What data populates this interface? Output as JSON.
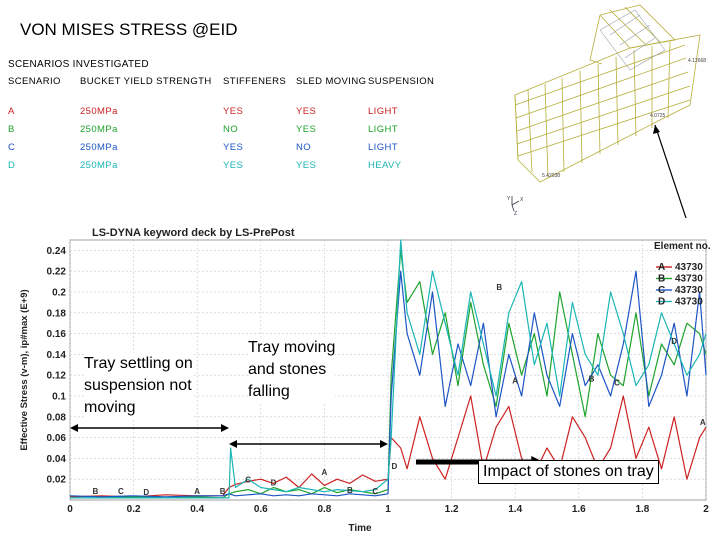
{
  "slide": {
    "title": "VON MISES STRESS @EID"
  },
  "scenarios": {
    "title": "SCENARIOS INVESTIGATED",
    "headers": [
      "SCENARIO",
      "BUCKET YIELD STRENGTH",
      "STIFFENERS",
      "SLED MOVING",
      "SUSPENSION"
    ],
    "rows": [
      [
        "A",
        "250MPa",
        "YES",
        "YES",
        "LIGHT"
      ],
      [
        "B",
        "250MPa",
        "NO",
        "YES",
        "LIGHT"
      ],
      [
        "C",
        "250MPa",
        "YES",
        "NO",
        "LIGHT"
      ],
      [
        "D",
        "250MPa",
        "YES",
        "YES",
        "HEAVY"
      ]
    ],
    "row_colors": [
      "#cc2222",
      "#1fa32d",
      "#1d55c4",
      "#1cb5b5"
    ]
  },
  "model_view": {
    "labels": [
      "4.12668",
      "4.0725",
      "5.42038"
    ],
    "triad": [
      "Y",
      "X",
      "Z"
    ]
  },
  "chart_data": {
    "type": "line",
    "title": "LS-DYNA keyword deck by LS-PrePost",
    "xlabel": "Time",
    "ylabel": "Effective Stress (v-m), ip#max (E+9)",
    "xlim": [
      0,
      2
    ],
    "ylim": [
      0,
      0.25
    ],
    "xticks": [
      0,
      0.2,
      0.4,
      0.6,
      0.8,
      1,
      1.2,
      1.4,
      1.6,
      1.8,
      2
    ],
    "yticks": [
      0.02,
      0.04,
      0.06,
      0.08,
      0.1,
      0.12,
      0.14,
      0.16,
      0.18,
      0.2,
      0.22,
      0.24
    ],
    "grid": true,
    "legend": {
      "title": "Element no.",
      "position": "top-right",
      "entries": [
        {
          "letter": "A",
          "label": "43730",
          "color": "#cc2222"
        },
        {
          "letter": "B",
          "label": "43730",
          "color": "#1fa32d"
        },
        {
          "letter": "C",
          "label": "43730",
          "color": "#1d55c4"
        },
        {
          "letter": "D",
          "label": "43730",
          "color": "#1cb5b5"
        }
      ]
    },
    "series": [
      {
        "letter": "A",
        "color": "#cc2222",
        "x": [
          0,
          0.1,
          0.2,
          0.3,
          0.4,
          0.48,
          0.5,
          0.52,
          0.56,
          0.6,
          0.64,
          0.68,
          0.72,
          0.76,
          0.8,
          0.84,
          0.88,
          0.92,
          0.96,
          1.0,
          1.01,
          1.04,
          1.06,
          1.1,
          1.14,
          1.18,
          1.22,
          1.26,
          1.3,
          1.34,
          1.38,
          1.42,
          1.46,
          1.5,
          1.54,
          1.58,
          1.62,
          1.66,
          1.7,
          1.74,
          1.78,
          1.82,
          1.86,
          1.9,
          1.94,
          1.98,
          2.0
        ],
        "y": [
          0.003,
          0.004,
          0.003,
          0.005,
          0.004,
          0.004,
          0.012,
          0.015,
          0.018,
          0.02,
          0.016,
          0.022,
          0.012,
          0.025,
          0.014,
          0.02,
          0.016,
          0.024,
          0.018,
          0.02,
          0.06,
          0.05,
          0.03,
          0.08,
          0.04,
          0.02,
          0.06,
          0.1,
          0.03,
          0.07,
          0.09,
          0.04,
          0.025,
          0.05,
          0.03,
          0.08,
          0.06,
          0.03,
          0.05,
          0.1,
          0.04,
          0.07,
          0.03,
          0.08,
          0.02,
          0.06,
          0.07
        ]
      },
      {
        "letter": "B",
        "color": "#1fa32d",
        "x": [
          0,
          0.1,
          0.2,
          0.3,
          0.4,
          0.48,
          0.5,
          0.52,
          0.56,
          0.6,
          0.64,
          0.68,
          0.72,
          0.76,
          0.8,
          0.84,
          0.88,
          0.92,
          0.96,
          1.0,
          1.01,
          1.04,
          1.06,
          1.1,
          1.14,
          1.18,
          1.22,
          1.26,
          1.3,
          1.34,
          1.38,
          1.42,
          1.46,
          1.5,
          1.54,
          1.58,
          1.62,
          1.66,
          1.7,
          1.74,
          1.78,
          1.82,
          1.86,
          1.9,
          1.94,
          1.98,
          2.0
        ],
        "y": [
          0.002,
          0.002,
          0.003,
          0.002,
          0.003,
          0.002,
          0.006,
          0.008,
          0.01,
          0.006,
          0.012,
          0.008,
          0.01,
          0.006,
          0.012,
          0.007,
          0.01,
          0.008,
          0.006,
          0.01,
          0.12,
          0.24,
          0.19,
          0.21,
          0.14,
          0.18,
          0.11,
          0.19,
          0.13,
          0.09,
          0.17,
          0.12,
          0.16,
          0.1,
          0.2,
          0.14,
          0.08,
          0.16,
          0.12,
          0.11,
          0.18,
          0.1,
          0.15,
          0.13,
          0.17,
          0.16,
          0.14
        ]
      },
      {
        "letter": "C",
        "color": "#1d55c4",
        "x": [
          0,
          0.1,
          0.2,
          0.3,
          0.4,
          0.48,
          0.5,
          0.52,
          0.56,
          0.6,
          0.64,
          0.68,
          0.72,
          0.76,
          0.8,
          0.84,
          0.88,
          0.92,
          0.96,
          1.0,
          1.01,
          1.04,
          1.06,
          1.1,
          1.14,
          1.18,
          1.22,
          1.26,
          1.3,
          1.34,
          1.38,
          1.42,
          1.46,
          1.5,
          1.54,
          1.58,
          1.62,
          1.66,
          1.7,
          1.74,
          1.78,
          1.82,
          1.86,
          1.9,
          1.94,
          1.98,
          2.0
        ],
        "y": [
          0.004,
          0.003,
          0.004,
          0.003,
          0.004,
          0.004,
          0.006,
          0.004,
          0.005,
          0.006,
          0.004,
          0.005,
          0.004,
          0.006,
          0.005,
          0.004,
          0.006,
          0.005,
          0.004,
          0.006,
          0.1,
          0.22,
          0.16,
          0.12,
          0.2,
          0.09,
          0.15,
          0.11,
          0.17,
          0.08,
          0.14,
          0.1,
          0.18,
          0.12,
          0.09,
          0.16,
          0.11,
          0.13,
          0.1,
          0.15,
          0.22,
          0.09,
          0.12,
          0.17,
          0.1,
          0.2,
          0.12
        ]
      },
      {
        "letter": "D",
        "color": "#1cb5b5",
        "x": [
          0,
          0.1,
          0.2,
          0.3,
          0.4,
          0.48,
          0.5,
          0.505,
          0.52,
          0.56,
          0.6,
          0.64,
          0.68,
          0.72,
          0.76,
          0.8,
          0.84,
          0.88,
          0.92,
          0.96,
          1.0,
          1.01,
          1.04,
          1.06,
          1.1,
          1.14,
          1.18,
          1.22,
          1.26,
          1.3,
          1.34,
          1.38,
          1.42,
          1.46,
          1.5,
          1.54,
          1.58,
          1.62,
          1.66,
          1.7,
          1.74,
          1.78,
          1.82,
          1.86,
          1.9,
          1.94,
          1.98,
          2.0
        ],
        "y": [
          0.002,
          0.002,
          0.002,
          0.002,
          0.002,
          0.002,
          0.002,
          0.05,
          0.012,
          0.02,
          0.012,
          0.01,
          0.008,
          0.012,
          0.01,
          0.008,
          0.01,
          0.009,
          0.008,
          0.01,
          0.02,
          0.06,
          0.25,
          0.18,
          0.14,
          0.22,
          0.17,
          0.12,
          0.2,
          0.15,
          0.1,
          0.18,
          0.21,
          0.13,
          0.17,
          0.1,
          0.19,
          0.14,
          0.12,
          0.2,
          0.16,
          0.11,
          0.13,
          0.18,
          0.15,
          0.12,
          0.14,
          0.16
        ]
      }
    ],
    "series_markers": [
      {
        "letter": "B",
        "x": 0.08,
        "y": 0.004
      },
      {
        "letter": "C",
        "x": 0.16,
        "y": 0.004
      },
      {
        "letter": "D",
        "x": 0.24,
        "y": 0.003
      },
      {
        "letter": "A",
        "x": 0.4,
        "y": 0.004
      },
      {
        "letter": "B",
        "x": 0.48,
        "y": 0.004
      },
      {
        "letter": "C",
        "x": 0.56,
        "y": 0.015
      },
      {
        "letter": "D",
        "x": 0.64,
        "y": 0.012
      },
      {
        "letter": "A",
        "x": 0.8,
        "y": 0.022
      },
      {
        "letter": "B",
        "x": 0.88,
        "y": 0.005
      },
      {
        "letter": "C",
        "x": 0.96,
        "y": 0.004
      },
      {
        "letter": "D",
        "x": 1.02,
        "y": 0.028
      },
      {
        "letter": "B",
        "x": 1.35,
        "y": 0.2
      },
      {
        "letter": "A",
        "x": 1.4,
        "y": 0.11
      },
      {
        "letter": "B",
        "x": 1.64,
        "y": 0.112
      },
      {
        "letter": "C",
        "x": 1.72,
        "y": 0.108
      },
      {
        "letter": "D",
        "x": 1.9,
        "y": 0.148
      },
      {
        "letter": "A",
        "x": 1.99,
        "y": 0.07
      }
    ],
    "annotations": {
      "settling": {
        "lines": [
          "Tray settling on",
          "suspension not",
          "moving"
        ],
        "x_range": [
          0,
          0.5
        ]
      },
      "moving": {
        "lines": [
          "Tray moving",
          "and stones",
          "falling"
        ],
        "x_range": [
          0.5,
          1.0
        ]
      },
      "impact": {
        "text": "Impact of stones on tray",
        "x_range": [
          1.0,
          1.35
        ]
      }
    }
  }
}
